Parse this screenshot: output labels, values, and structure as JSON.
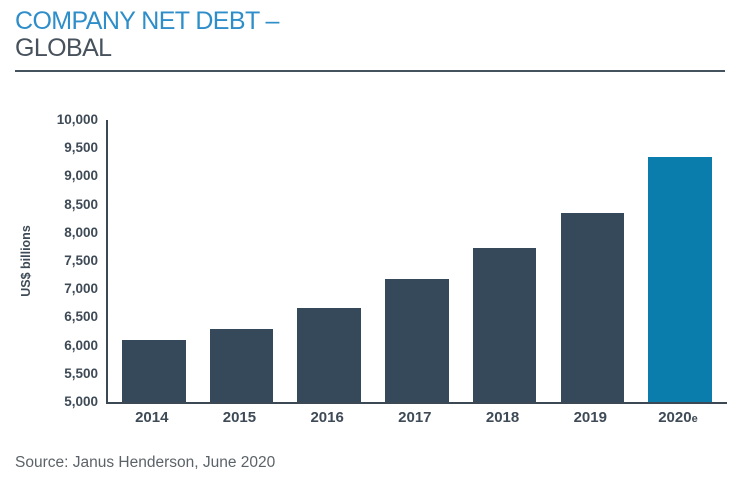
{
  "header": {
    "title_line1": "COMPANY NET DEBT –",
    "title_line2": "GLOBAL"
  },
  "chart_data": {
    "type": "bar",
    "title": "COMPANY NET DEBT – GLOBAL",
    "xlabel": "",
    "ylabel": "US$ billions",
    "ylim": [
      5000,
      10000
    ],
    "ytick_step": 500,
    "ytick_labels_top_to_bottom": [
      "10,000",
      "9,500",
      "9,000",
      "8,500",
      "8,000",
      "7,500",
      "7,000",
      "6,500",
      "6,000",
      "5,500",
      "5,000"
    ],
    "categories": [
      "2014",
      "2015",
      "2016",
      "2017",
      "2018",
      "2019",
      "2020"
    ],
    "category_suffixes": [
      "",
      "",
      "",
      "",
      "",
      "",
      "e"
    ],
    "values": [
      6100,
      6300,
      6675,
      7175,
      7725,
      8350,
      9350
    ],
    "grid": false,
    "legend": false,
    "bar_color": "#35495A",
    "highlight_index": 6,
    "highlight_color": "#0B7DAD"
  },
  "footer": {
    "source": "Source: Janus Henderson, June 2020"
  },
  "colors": {
    "title_accent": "#2E8EC9",
    "title_secondary": "#47525D",
    "axis": "#3C4955",
    "divider": "#44525E",
    "source_text": "#5C6368"
  }
}
